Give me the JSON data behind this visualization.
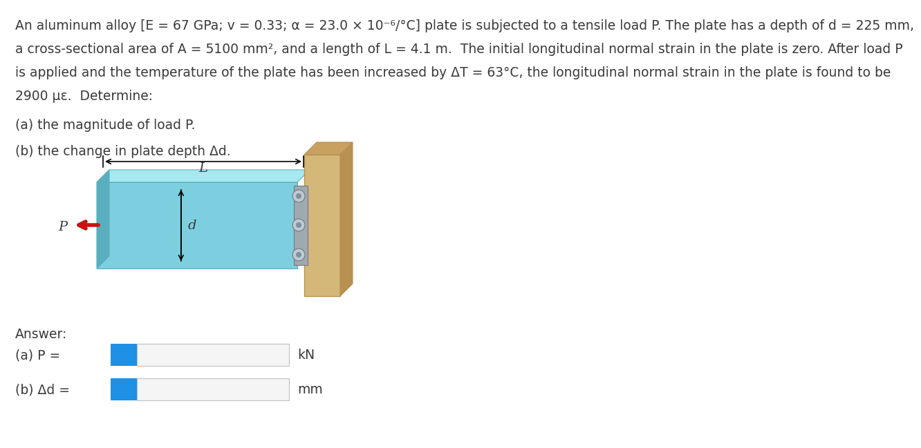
{
  "line1": "An aluminum alloy [E = 67 GPa; v = 0.33; α = 23.0 × 10⁻⁶/°C] plate is subjected to a tensile load P. The plate has a depth of d = 225 mm,",
  "line2": "a cross-sectional area of A = 5100 mm², and a length of L = 4.1 m.  The initial longitudinal normal strain in the plate is zero. After load P",
  "line3": "is applied and the temperature of the plate has been increased by ΔT = 63°C, the longitudinal normal strain in the plate is found to be",
  "line4": "2900 με.  Determine:",
  "part_a": "(a) the magnitude of load P.",
  "part_b": "(b) the change in plate depth Δd.",
  "answer_label": "Answer:",
  "ans_a_label": "(a) P = ",
  "ans_b_label": "(b) Δd = ",
  "unit_a": "kN",
  "unit_b": "mm",
  "text_color": "#3a3a3a",
  "blue_color": "#1e90e6",
  "input_bg": "#f5f5f5",
  "input_border": "#c0c0c0",
  "bg_color": "#ffffff",
  "plate_color": "#7dcfdf",
  "plate_dark": "#5aafbf",
  "wall_color": "#d4b87a",
  "wall_dark": "#b89050",
  "wall_side": "#c8a060",
  "arrow_red": "#cc1111",
  "font_size_main": 13.5,
  "font_size_answer": 13.5
}
